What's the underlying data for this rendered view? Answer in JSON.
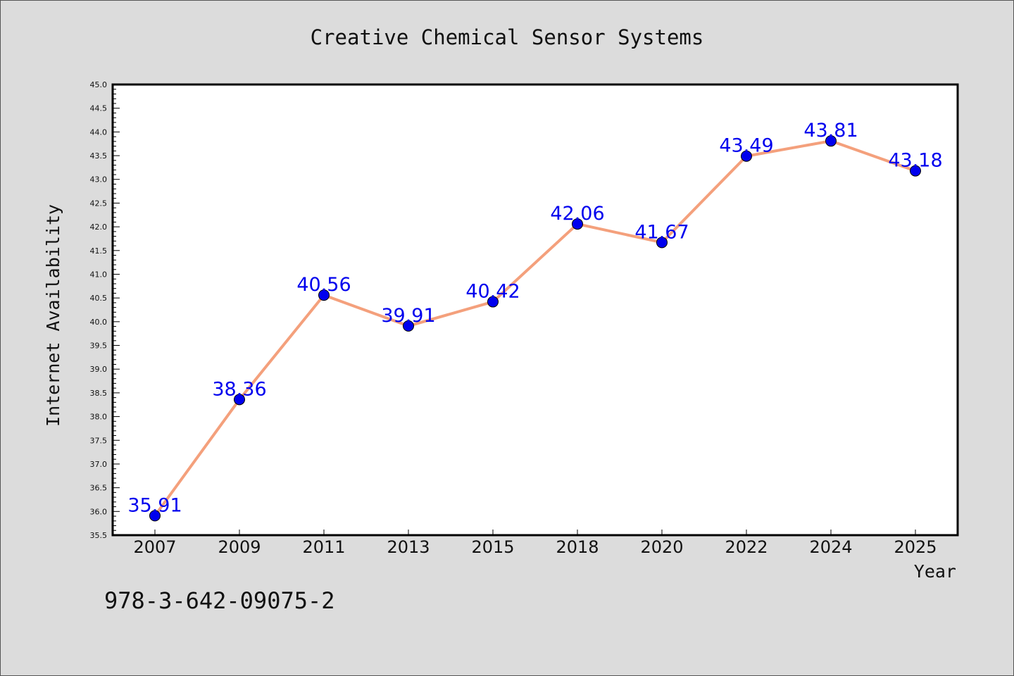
{
  "chart_data": {
    "type": "line",
    "title": "Creative Chemical Sensor Systems",
    "xlabel": "Year",
    "ylabel": "Internet Availability",
    "categories": [
      "2007",
      "2009",
      "2011",
      "2013",
      "2015",
      "2018",
      "2020",
      "2022",
      "2024",
      "2025"
    ],
    "series": [
      {
        "values": [
          35.91,
          38.36,
          40.56,
          39.91,
          40.42,
          42.06,
          41.67,
          43.49,
          43.81,
          43.18
        ],
        "data_labels": [
          "35.91",
          "38.36",
          "40.56",
          "39.91",
          "40.42",
          "42.06",
          "41.67",
          "43.49",
          "43.81",
          "43.18"
        ],
        "line_color": "#f4a07c",
        "marker_color": "#0000ee"
      }
    ],
    "ylim": [
      35.5,
      45.0
    ],
    "yticks": [
      "35.5",
      "36.0",
      "36.5",
      "37.0",
      "37.5",
      "38.0",
      "38.5",
      "39.0",
      "39.5",
      "40.0",
      "40.5",
      "41.0",
      "41.5",
      "42.0",
      "42.5",
      "43.0",
      "43.5",
      "44.0",
      "44.5",
      "45.0"
    ],
    "grid": false,
    "legend": "none",
    "label_color": "#0000ee",
    "background": "#dcdcdc",
    "plot_background": "#ffffff"
  },
  "footer_note": "978-3-642-09075-2"
}
